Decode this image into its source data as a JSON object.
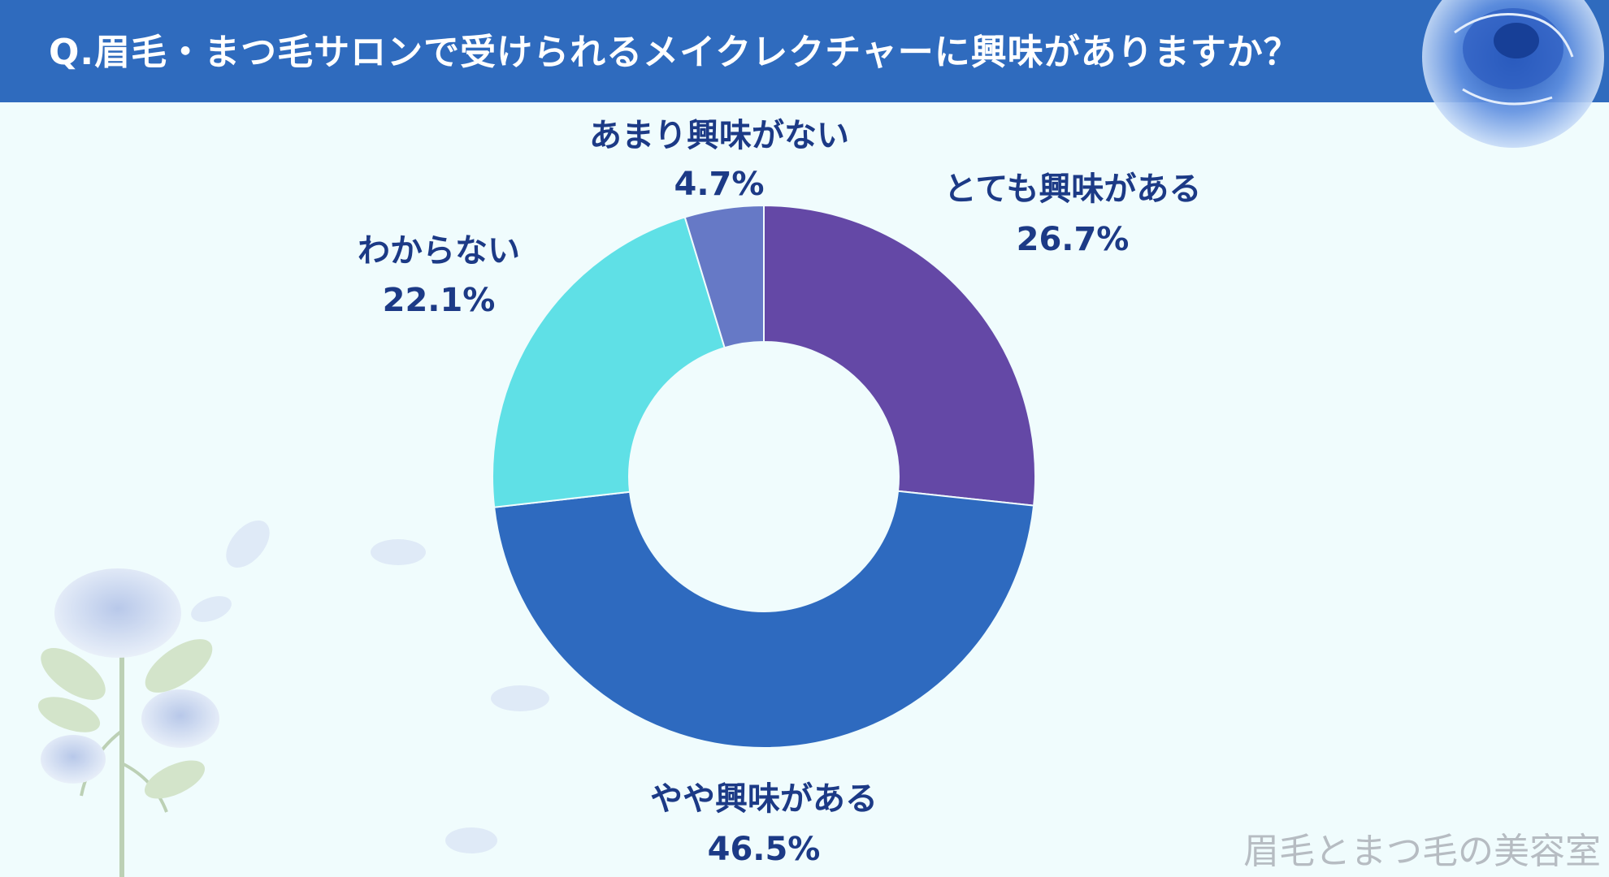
{
  "header": {
    "title": "Q.眉毛・まつ毛サロンで受けられるメイクレクチャーに興味がありますか？"
  },
  "chart_data": {
    "type": "pie",
    "style": "donut",
    "title": "Q.眉毛・まつ毛サロンで受けられるメイクレクチャーに興味がありますか？",
    "slices": [
      {
        "label": "とても興味がある",
        "value": 26.7,
        "display": "26.7%",
        "color": "#6448a6"
      },
      {
        "label": "やや興味がある",
        "value": 46.5,
        "display": "46.5%",
        "color": "#2e6abf"
      },
      {
        "label": "わからない",
        "value": 22.1,
        "display": "22.1%",
        "color": "#5fe0e6"
      },
      {
        "label": "あまり興味がない",
        "value": 4.7,
        "display": "4.7%",
        "color": "#6679c6"
      }
    ]
  },
  "footer": {
    "watermark": "眉毛とまつ毛の美容室"
  },
  "colors": {
    "header": "#2f6bbe",
    "background": "#f0fcfd",
    "label": "#1c3a86"
  }
}
